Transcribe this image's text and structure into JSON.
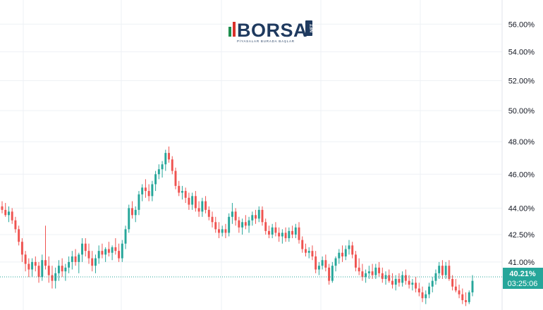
{
  "logo": {
    "name": "BORSA",
    "suffix": "NET",
    "tagline": "PİYASALAR BURADA BAŞLAR"
  },
  "colors": {
    "up": "#26a69a",
    "down": "#ef5350",
    "grid": "#eef1f5",
    "axis_text": "#131722",
    "current_price_line": "#26a69a",
    "price_box": "#26a69a",
    "logo_navy": "#1f3a5f",
    "logo_green": "#1e8f4e",
    "logo_red": "#d9322c"
  },
  "price_tag": {
    "value": "40.21%",
    "countdown": "03:25:06"
  },
  "chart_data": {
    "type": "candlestick",
    "title": "",
    "xlabel": "",
    "ylabel": "",
    "y_axis_side": "right",
    "y_scale": "log",
    "ylim": [
      38.5,
      57.8
    ],
    "y_ticks": [
      41.0,
      42.5,
      44.0,
      46.0,
      48.0,
      50.0,
      52.0,
      54.0,
      56.0
    ],
    "y_tick_labels": [
      "41.00%",
      "42.50%",
      "44.00%",
      "46.00%",
      "48.00%",
      "50.00%",
      "52.00%",
      "54.00%",
      "56.00%"
    ],
    "grid": true,
    "current_value": 40.21,
    "ohlc": [
      [
        44.1,
        44.4,
        43.7,
        43.9
      ],
      [
        43.9,
        44.3,
        43.5,
        43.6
      ],
      [
        43.6,
        44.1,
        43.2,
        43.8
      ],
      [
        43.8,
        44.0,
        43.1,
        43.3
      ],
      [
        43.3,
        43.5,
        42.6,
        42.8
      ],
      [
        42.8,
        43.0,
        41.9,
        42.1
      ],
      [
        42.1,
        42.3,
        41.0,
        41.4
      ],
      [
        41.4,
        41.6,
        40.5,
        40.9
      ],
      [
        40.9,
        41.2,
        40.2,
        40.6
      ],
      [
        40.6,
        41.2,
        40.2,
        41.0
      ],
      [
        41.0,
        41.3,
        40.5,
        40.8
      ],
      [
        40.8,
        41.0,
        39.9,
        40.2
      ],
      [
        40.2,
        41.4,
        40.0,
        41.1
      ],
      [
        41.1,
        43.0,
        40.6,
        40.8
      ],
      [
        40.8,
        41.3,
        39.9,
        40.3
      ],
      [
        40.3,
        40.8,
        39.6,
        40.0
      ],
      [
        40.0,
        40.7,
        39.6,
        40.4
      ],
      [
        40.4,
        41.1,
        40.0,
        40.8
      ],
      [
        40.8,
        41.2,
        40.2,
        40.5
      ],
      [
        40.5,
        40.9,
        40.0,
        40.7
      ],
      [
        40.7,
        41.3,
        40.4,
        41.0
      ],
      [
        41.0,
        41.6,
        40.6,
        41.3
      ],
      [
        41.3,
        41.7,
        40.8,
        41.0
      ],
      [
        41.0,
        41.5,
        40.4,
        41.4
      ],
      [
        41.4,
        42.3,
        41.0,
        42.0
      ],
      [
        42.0,
        42.3,
        41.3,
        41.6
      ],
      [
        41.6,
        42.0,
        40.9,
        41.2
      ],
      [
        41.2,
        41.6,
        40.5,
        40.8
      ],
      [
        40.8,
        41.4,
        40.4,
        41.2
      ],
      [
        41.2,
        41.9,
        40.9,
        41.6
      ],
      [
        41.6,
        42.0,
        41.2,
        41.4
      ],
      [
        41.4,
        41.8,
        41.0,
        41.7
      ],
      [
        41.7,
        42.1,
        41.3,
        41.5
      ],
      [
        41.5,
        41.9,
        41.1,
        41.8
      ],
      [
        41.8,
        42.3,
        41.4,
        41.6
      ],
      [
        41.6,
        42.0,
        41.0,
        41.2
      ],
      [
        41.2,
        42.2,
        41.0,
        42.0
      ],
      [
        42.0,
        43.0,
        41.7,
        42.8
      ],
      [
        42.8,
        44.2,
        42.6,
        44.0
      ],
      [
        44.0,
        44.4,
        43.4,
        43.6
      ],
      [
        43.6,
        44.1,
        43.2,
        43.9
      ],
      [
        43.9,
        45.0,
        43.6,
        44.8
      ],
      [
        44.8,
        45.4,
        44.4,
        45.2
      ],
      [
        45.2,
        45.7,
        44.6,
        45.0
      ],
      [
        45.0,
        45.4,
        44.4,
        44.7
      ],
      [
        44.7,
        45.6,
        44.4,
        45.4
      ],
      [
        45.4,
        46.2,
        45.0,
        46.0
      ],
      [
        46.0,
        46.6,
        45.7,
        46.3
      ],
      [
        46.3,
        46.8,
        45.8,
        46.6
      ],
      [
        46.6,
        47.5,
        46.2,
        47.3
      ],
      [
        47.3,
        47.7,
        46.7,
        46.9
      ],
      [
        46.9,
        47.1,
        46.0,
        46.2
      ],
      [
        46.2,
        46.4,
        45.1,
        45.3
      ],
      [
        45.3,
        45.6,
        44.7,
        44.9
      ],
      [
        44.9,
        45.3,
        44.5,
        45.0
      ],
      [
        45.0,
        45.2,
        44.3,
        44.6
      ],
      [
        44.6,
        44.9,
        43.9,
        44.2
      ],
      [
        44.2,
        44.9,
        43.9,
        44.7
      ],
      [
        44.7,
        45.0,
        43.8,
        44.0
      ],
      [
        44.0,
        44.4,
        43.5,
        43.8
      ],
      [
        43.8,
        44.6,
        43.5,
        44.4
      ],
      [
        44.4,
        44.7,
        43.7,
        43.9
      ],
      [
        43.9,
        44.1,
        43.3,
        43.5
      ],
      [
        43.5,
        43.8,
        42.9,
        43.2
      ],
      [
        43.2,
        43.5,
        42.6,
        42.8
      ],
      [
        42.8,
        43.2,
        42.3,
        42.6
      ],
      [
        42.6,
        43.0,
        42.4,
        42.8
      ],
      [
        42.8,
        43.1,
        42.3,
        42.6
      ],
      [
        42.6,
        43.7,
        42.4,
        43.5
      ],
      [
        43.5,
        44.3,
        43.1,
        43.8
      ],
      [
        43.8,
        44.0,
        43.0,
        43.3
      ],
      [
        43.3,
        43.5,
        42.6,
        42.9
      ],
      [
        42.9,
        43.4,
        42.5,
        43.2
      ],
      [
        43.2,
        43.6,
        42.8,
        43.0
      ],
      [
        43.0,
        43.5,
        42.6,
        43.3
      ],
      [
        43.3,
        43.8,
        43.0,
        43.6
      ],
      [
        43.6,
        43.9,
        43.1,
        43.4
      ],
      [
        43.4,
        44.1,
        43.2,
        43.9
      ],
      [
        43.9,
        44.1,
        43.0,
        43.2
      ],
      [
        43.2,
        43.4,
        42.5,
        42.7
      ],
      [
        42.7,
        43.0,
        42.3,
        42.5
      ],
      [
        42.5,
        43.1,
        42.3,
        42.9
      ],
      [
        42.9,
        43.2,
        42.4,
        42.6
      ],
      [
        42.6,
        42.9,
        42.1,
        42.4
      ],
      [
        42.4,
        42.8,
        42.0,
        42.6
      ],
      [
        42.6,
        42.9,
        42.1,
        42.3
      ],
      [
        42.3,
        42.9,
        42.1,
        42.7
      ],
      [
        42.7,
        43.0,
        42.3,
        42.5
      ],
      [
        42.5,
        43.1,
        42.3,
        42.9
      ],
      [
        42.9,
        43.2,
        42.0,
        42.2
      ],
      [
        42.2,
        42.4,
        41.5,
        41.7
      ],
      [
        41.7,
        42.0,
        41.3,
        41.5
      ],
      [
        41.5,
        41.8,
        41.2,
        41.6
      ],
      [
        41.6,
        41.9,
        41.1,
        41.3
      ],
      [
        41.3,
        41.6,
        40.4,
        40.6
      ],
      [
        40.6,
        41.0,
        40.3,
        40.8
      ],
      [
        40.8,
        41.3,
        40.6,
        41.1
      ],
      [
        41.1,
        41.4,
        40.5,
        40.7
      ],
      [
        40.7,
        40.9,
        39.8,
        40.0
      ],
      [
        40.0,
        41.0,
        39.9,
        40.8
      ],
      [
        40.8,
        41.3,
        40.5,
        41.2
      ],
      [
        41.2,
        41.7,
        40.9,
        41.5
      ],
      [
        41.5,
        41.9,
        41.0,
        41.3
      ],
      [
        41.3,
        41.9,
        41.1,
        41.7
      ],
      [
        41.7,
        42.2,
        41.4,
        41.9
      ],
      [
        41.9,
        42.1,
        41.2,
        41.4
      ],
      [
        41.4,
        41.6,
        40.5,
        40.7
      ],
      [
        40.7,
        41.2,
        40.3,
        40.5
      ],
      [
        40.5,
        40.9,
        40.0,
        40.2
      ],
      [
        40.2,
        40.6,
        39.9,
        40.4
      ],
      [
        40.4,
        40.8,
        40.1,
        40.5
      ],
      [
        40.5,
        40.9,
        40.1,
        40.3
      ],
      [
        40.3,
        40.9,
        40.1,
        40.7
      ],
      [
        40.7,
        41.0,
        40.2,
        40.4
      ],
      [
        40.4,
        40.7,
        39.9,
        40.1
      ],
      [
        40.1,
        40.5,
        39.8,
        40.3
      ],
      [
        40.3,
        40.6,
        39.9,
        40.0
      ],
      [
        40.0,
        40.4,
        39.6,
        39.8
      ],
      [
        39.8,
        40.3,
        39.5,
        40.1
      ],
      [
        40.1,
        40.4,
        39.7,
        39.9
      ],
      [
        39.9,
        40.5,
        39.7,
        40.3
      ],
      [
        40.3,
        40.6,
        39.8,
        40.0
      ],
      [
        40.0,
        40.3,
        39.6,
        39.8
      ],
      [
        39.8,
        40.1,
        39.5,
        39.9
      ],
      [
        39.9,
        40.2,
        39.4,
        39.6
      ],
      [
        39.6,
        39.9,
        39.2,
        39.4
      ],
      [
        39.4,
        39.7,
        38.9,
        39.1
      ],
      [
        39.1,
        39.5,
        38.8,
        39.3
      ],
      [
        39.3,
        39.9,
        39.1,
        39.7
      ],
      [
        39.7,
        40.2,
        39.4,
        40.0
      ],
      [
        40.0,
        40.6,
        39.8,
        40.4
      ],
      [
        40.4,
        41.0,
        40.1,
        40.8
      ],
      [
        40.8,
        41.1,
        40.1,
        40.3
      ],
      [
        40.3,
        41.0,
        40.1,
        40.8
      ],
      [
        40.8,
        41.1,
        40.0,
        40.1
      ],
      [
        40.1,
        40.3,
        39.5,
        39.7
      ],
      [
        39.7,
        40.1,
        39.4,
        39.5
      ],
      [
        39.5,
        39.8,
        39.1,
        39.3
      ],
      [
        39.3,
        39.6,
        38.8,
        39.0
      ],
      [
        39.0,
        39.4,
        38.7,
        38.9
      ],
      [
        38.9,
        39.5,
        38.8,
        39.4
      ],
      [
        39.4,
        40.3,
        39.2,
        40.0
      ]
    ]
  }
}
